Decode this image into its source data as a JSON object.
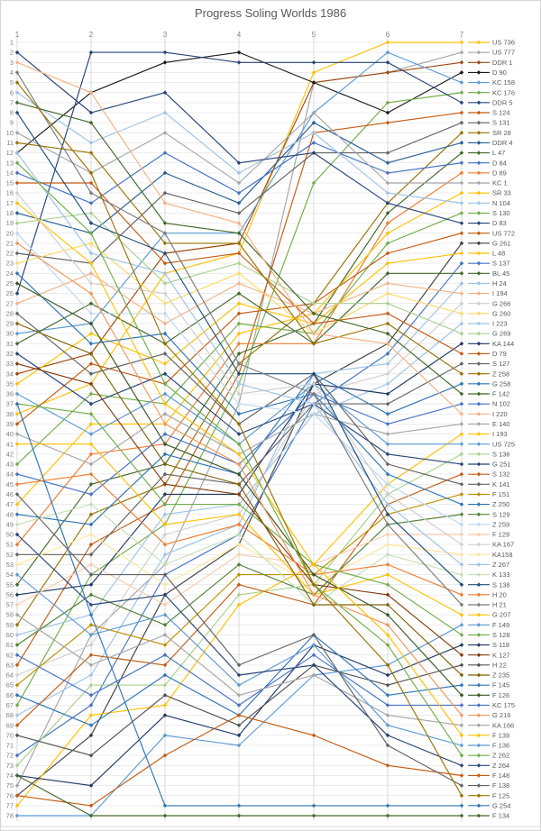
{
  "chart": {
    "title": "Progress Soling Worlds 1986"
  },
  "chart_data": {
    "type": "line",
    "subtype": "bump-chart",
    "title": "Progress Soling Worlds 1986",
    "xlabel": "",
    "ylabel": "",
    "categories": [
      "1",
      "2",
      "3",
      "4",
      "5",
      "6",
      "7"
    ],
    "y_axis": {
      "min": 1,
      "max": 78,
      "step": 1,
      "inverted": true
    },
    "grid": true,
    "legend_position": "right",
    "note": "Positions per race are estimated from line trajectories; final column equals legend order.",
    "series": [
      {
        "name": "US 736",
        "color": "#FFC000",
        "positions": [
          38,
          35,
          24,
          22,
          4,
          1,
          1
        ]
      },
      {
        "name": "US 777",
        "color": "#A5A5A5",
        "positions": [
          75,
          60,
          53,
          37,
          5,
          4,
          2
        ]
      },
      {
        "name": "DDR 1",
        "color": "#9E480E",
        "positions": [
          34,
          32,
          22,
          21,
          5,
          4,
          3
        ]
      },
      {
        "name": "D 90",
        "color": "#1A1A1A",
        "positions": [
          12,
          6,
          3,
          2,
          5,
          8,
          4
        ]
      },
      {
        "name": "KC 158",
        "color": "#5B9BD5",
        "positions": [
          30,
          29,
          20,
          20,
          8,
          2,
          5
        ]
      },
      {
        "name": "KC 176",
        "color": "#70AD47",
        "positions": [
          67,
          54,
          49,
          35,
          15,
          7,
          6
        ]
      },
      {
        "name": "DDR 5",
        "color": "#264478",
        "positions": [
          26,
          2,
          2,
          3,
          3,
          3,
          7
        ]
      },
      {
        "name": "S 124",
        "color": "#C55A11",
        "positions": [
          63,
          51,
          47,
          34,
          10,
          9,
          8
        ]
      },
      {
        "name": "S 131",
        "color": "#636363",
        "positions": [
          22,
          23,
          16,
          18,
          12,
          12,
          9
        ]
      },
      {
        "name": "SR 28",
        "color": "#997300",
        "positions": [
          59,
          48,
          45,
          33,
          27,
          17,
          10
        ]
      },
      {
        "name": "DDR 4",
        "color": "#255E91",
        "positions": [
          18,
          20,
          14,
          17,
          9,
          13,
          11
        ]
      },
      {
        "name": "L 47",
        "color": "#43682B",
        "positions": [
          55,
          45,
          43,
          32,
          29,
          18,
          12
        ]
      },
      {
        "name": "D 84",
        "color": "#4472C4",
        "positions": [
          14,
          17,
          12,
          16,
          11,
          14,
          13
        ]
      },
      {
        "name": "D 89",
        "color": "#ED7D31",
        "positions": [
          51,
          42,
          41,
          31,
          31,
          19,
          14
        ]
      },
      {
        "name": "KC 1",
        "color": "#A5A5A5",
        "positions": [
          10,
          14,
          10,
          15,
          8,
          15,
          15
        ]
      },
      {
        "name": "SR 33",
        "color": "#FFC000",
        "positions": [
          47,
          39,
          39,
          30,
          28,
          20,
          16
        ]
      },
      {
        "name": "N 104",
        "color": "#9DC3E6",
        "positions": [
          6,
          11,
          8,
          14,
          10,
          16,
          17
        ]
      },
      {
        "name": "S 130",
        "color": "#70AD47",
        "positions": [
          43,
          36,
          37,
          29,
          30,
          21,
          18
        ]
      },
      {
        "name": "D 83",
        "color": "#264478",
        "positions": [
          2,
          8,
          6,
          13,
          12,
          17,
          19
        ]
      },
      {
        "name": "US 772",
        "color": "#C55A11",
        "positions": [
          39,
          33,
          35,
          28,
          27,
          22,
          20
        ]
      },
      {
        "name": "G 261",
        "color": "#404040",
        "positions": [
          76,
          70,
          56,
          51,
          35,
          31,
          21
        ]
      },
      {
        "name": "L 48",
        "color": "#FFC000",
        "positions": [
          35,
          30,
          33,
          27,
          29,
          23,
          22
        ]
      },
      {
        "name": "S 137",
        "color": "#4472C4",
        "positions": [
          72,
          67,
          54,
          50,
          37,
          32,
          23
        ]
      },
      {
        "name": "BL 45",
        "color": "#43682B",
        "positions": [
          31,
          27,
          31,
          26,
          31,
          24,
          24
        ]
      },
      {
        "name": "H 24",
        "color": "#9DC3E6",
        "positions": [
          68,
          64,
          52,
          49,
          34,
          33,
          25
        ]
      },
      {
        "name": "I 194",
        "color": "#F4B183",
        "positions": [
          27,
          24,
          29,
          25,
          28,
          25,
          26
        ]
      },
      {
        "name": "G 266",
        "color": "#CFCFCF",
        "positions": [
          64,
          61,
          50,
          48,
          36,
          34,
          27
        ]
      },
      {
        "name": "G 260",
        "color": "#FFD966",
        "positions": [
          23,
          21,
          27,
          24,
          30,
          26,
          28
        ]
      },
      {
        "name": "I 223",
        "color": "#9DC3E6",
        "positions": [
          60,
          58,
          48,
          47,
          38,
          35,
          29
        ]
      },
      {
        "name": "G 269",
        "color": "#A9D18E",
        "positions": [
          19,
          18,
          25,
          23,
          27,
          27,
          30
        ]
      },
      {
        "name": "KA 144",
        "color": "#1F3864",
        "positions": [
          56,
          55,
          46,
          46,
          35,
          36,
          31
        ]
      },
      {
        "name": "D 79",
        "color": "#C55A11",
        "positions": [
          15,
          15,
          23,
          22,
          29,
          28,
          32
        ]
      },
      {
        "name": "S 127",
        "color": "#636363",
        "positions": [
          52,
          52,
          44,
          45,
          37,
          37,
          33
        ]
      },
      {
        "name": "Z 258",
        "color": "#997300",
        "positions": [
          11,
          12,
          21,
          21,
          31,
          29,
          34
        ]
      },
      {
        "name": "G 258",
        "color": "#2E75B6",
        "positions": [
          48,
          49,
          42,
          44,
          34,
          38,
          35
        ]
      },
      {
        "name": "F 142",
        "color": "#43682B",
        "positions": [
          7,
          9,
          19,
          20,
          28,
          30,
          36
        ]
      },
      {
        "name": "N 102",
        "color": "#4472C4",
        "positions": [
          44,
          46,
          40,
          43,
          36,
          39,
          37
        ]
      },
      {
        "name": "I 220",
        "color": "#F4B183",
        "positions": [
          3,
          6,
          17,
          19,
          30,
          31,
          38
        ]
      },
      {
        "name": "E 140",
        "color": "#A5A5A5",
        "positions": [
          40,
          43,
          38,
          42,
          38,
          40,
          39
        ]
      },
      {
        "name": "I 193",
        "color": "#FFC000",
        "positions": [
          77,
          68,
          67,
          57,
          53,
          45,
          40
        ]
      },
      {
        "name": "US 725",
        "color": "#5B9BD5",
        "positions": [
          36,
          40,
          36,
          41,
          35,
          41,
          41
        ]
      },
      {
        "name": "S 136",
        "color": "#A9D18E",
        "positions": [
          73,
          65,
          65,
          56,
          55,
          46,
          42
        ]
      },
      {
        "name": "G 251",
        "color": "#264478",
        "positions": [
          32,
          37,
          34,
          40,
          37,
          42,
          43
        ]
      },
      {
        "name": "S 132",
        "color": "#C55A11",
        "positions": [
          69,
          62,
          63,
          55,
          57,
          47,
          44
        ]
      },
      {
        "name": "K 141",
        "color": "#636363",
        "positions": [
          28,
          34,
          32,
          39,
          34,
          43,
          45
        ]
      },
      {
        "name": "F 151",
        "color": "#BF8F00",
        "positions": [
          65,
          59,
          61,
          54,
          54,
          48,
          46
        ]
      },
      {
        "name": "Z 250",
        "color": "#2E75B6",
        "positions": [
          24,
          31,
          30,
          38,
          36,
          44,
          47
        ]
      },
      {
        "name": "S 129",
        "color": "#538135",
        "positions": [
          61,
          56,
          59,
          53,
          56,
          49,
          48
        ]
      },
      {
        "name": "Z 259",
        "color": "#BDD7EE",
        "positions": [
          20,
          28,
          28,
          37,
          38,
          45,
          49
        ]
      },
      {
        "name": "F 129",
        "color": "#F8CBAD",
        "positions": [
          57,
          53,
          57,
          52,
          53,
          50,
          50
        ]
      },
      {
        "name": "KA 167",
        "color": "#D0CECE",
        "positions": [
          16,
          25,
          26,
          36,
          35,
          46,
          51
        ]
      },
      {
        "name": "KA158",
        "color": "#FFE699",
        "positions": [
          53,
          50,
          55,
          51,
          55,
          51,
          52
        ]
      },
      {
        "name": "Z 267",
        "color": "#9DC3E6",
        "positions": [
          12,
          22,
          24,
          35,
          37,
          47,
          53
        ]
      },
      {
        "name": "K 133",
        "color": "#C5E0B4",
        "positions": [
          49,
          47,
          53,
          50,
          57,
          52,
          54
        ]
      },
      {
        "name": "S 138",
        "color": "#1F4E79",
        "positions": [
          8,
          19,
          22,
          34,
          34,
          48,
          55
        ]
      },
      {
        "name": "H 20",
        "color": "#ED7D31",
        "positions": [
          45,
          44,
          51,
          49,
          54,
          53,
          56
        ]
      },
      {
        "name": "H 21",
        "color": "#7B7B7B",
        "positions": [
          4,
          16,
          20,
          33,
          36,
          49,
          57
        ]
      },
      {
        "name": "G 207",
        "color": "#FFC000",
        "positions": [
          41,
          41,
          49,
          48,
          56,
          54,
          58
        ]
      },
      {
        "name": "F 149",
        "color": "#5B9BD5",
        "positions": [
          78,
          78,
          70,
          71,
          64,
          63,
          59
        ]
      },
      {
        "name": "S 128",
        "color": "#70AD47",
        "positions": [
          37,
          38,
          47,
          47,
          53,
          55,
          60
        ]
      },
      {
        "name": "S 118",
        "color": "#203864",
        "positions": [
          74,
          75,
          68,
          70,
          61,
          64,
          61
        ]
      },
      {
        "name": "K 127",
        "color": "#843C0C",
        "positions": [
          33,
          35,
          45,
          46,
          55,
          56,
          62
        ]
      },
      {
        "name": "H 22",
        "color": "#525252",
        "positions": [
          70,
          72,
          66,
          69,
          63,
          65,
          63
        ]
      },
      {
        "name": "Z 235",
        "color": "#7F6000",
        "positions": [
          29,
          32,
          43,
          45,
          57,
          57,
          64
        ]
      },
      {
        "name": "F 145",
        "color": "#2E75B6",
        "positions": [
          66,
          69,
          64,
          68,
          60,
          66,
          65
        ]
      },
      {
        "name": "F 126",
        "color": "#385723",
        "positions": [
          25,
          29,
          41,
          44,
          54,
          58,
          66
        ]
      },
      {
        "name": "KC 175",
        "color": "#4472C4",
        "positions": [
          62,
          66,
          62,
          67,
          62,
          67,
          67
        ]
      },
      {
        "name": "G 216",
        "color": "#F1975A",
        "positions": [
          21,
          26,
          39,
          43,
          56,
          59,
          68
        ]
      },
      {
        "name": "KA 166",
        "color": "#A5A5A5",
        "positions": [
          58,
          63,
          60,
          66,
          64,
          68,
          69
        ]
      },
      {
        "name": "F 139",
        "color": "#FFC000",
        "positions": [
          17,
          23,
          37,
          42,
          53,
          60,
          70
        ]
      },
      {
        "name": "F 136",
        "color": "#5B9BD5",
        "positions": [
          54,
          60,
          58,
          65,
          61,
          69,
          71
        ]
      },
      {
        "name": "Z 262",
        "color": "#70AD47",
        "positions": [
          13,
          20,
          35,
          41,
          55,
          61,
          72
        ]
      },
      {
        "name": "Z 264",
        "color": "#264478",
        "positions": [
          50,
          57,
          56,
          64,
          63,
          70,
          73
        ]
      },
      {
        "name": "F 148",
        "color": "#C55A11",
        "positions": [
          76,
          77,
          72,
          68,
          70,
          73,
          74
        ]
      },
      {
        "name": "F 138",
        "color": "#636363",
        "positions": [
          46,
          54,
          54,
          63,
          60,
          71,
          75
        ]
      },
      {
        "name": "F 125",
        "color": "#997300",
        "positions": [
          5,
          14,
          31,
          39,
          55,
          63,
          76
        ]
      },
      {
        "name": "G 254",
        "color": "#2E75B6",
        "positions": [
          37,
          58,
          77,
          77,
          77,
          77,
          77
        ]
      },
      {
        "name": "F 134",
        "color": "#43682B",
        "positions": [
          74,
          78,
          78,
          78,
          78,
          78,
          78
        ]
      }
    ]
  },
  "style": {
    "grid_color_h": "#ececec",
    "grid_color_v": "#d9d9d9",
    "axis_label_color": "#808080",
    "title_color": "#595959",
    "legend_text_color": "#595959",
    "background": "#ffffff"
  }
}
